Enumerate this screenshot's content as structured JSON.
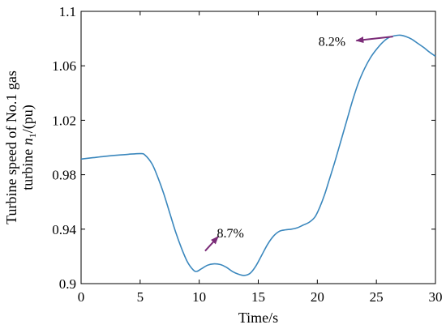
{
  "chart_data": {
    "type": "line",
    "xlabel": "Time/s",
    "ylabel_line1": "Turbine speed of No.1 gas",
    "ylabel_line2_prefix": "turbine ",
    "ylabel_symbol": "n",
    "ylabel_subscript": "1",
    "ylabel_suffix": "/(pu)",
    "xlim": [
      0,
      30
    ],
    "ylim": [
      0.9,
      1.1
    ],
    "xticks": [
      0,
      5,
      10,
      15,
      20,
      25,
      30
    ],
    "yticks": [
      0.9,
      0.94,
      0.98,
      1.02,
      1.06,
      1.1
    ],
    "grid": false,
    "series": [
      {
        "color": "#3a87bd",
        "x": [
          0,
          1,
          2,
          3,
          4,
          5,
          5.4,
          6,
          6.5,
          7,
          7.5,
          8,
          8.5,
          9,
          9.5,
          9.8,
          10.2,
          10.7,
          11.2,
          11.8,
          12.3,
          12.8,
          13.3,
          13.8,
          14.3,
          14.8,
          15.3,
          15.8,
          16.3,
          16.8,
          17.3,
          17.8,
          18.3,
          18.8,
          19.3,
          19.8,
          20.2,
          20.6,
          21,
          21.5,
          22,
          22.5,
          23,
          23.5,
          24,
          24.5,
          25,
          25.5,
          26,
          26.5,
          27,
          27.5,
          28,
          28.5,
          29,
          29.5,
          30
        ],
        "y": [
          0.9915,
          0.9925,
          0.9935,
          0.9943,
          0.995,
          0.9955,
          0.9945,
          0.988,
          0.978,
          0.966,
          0.952,
          0.938,
          0.926,
          0.916,
          0.91,
          0.909,
          0.911,
          0.9135,
          0.9145,
          0.914,
          0.912,
          0.909,
          0.907,
          0.906,
          0.9075,
          0.913,
          0.921,
          0.929,
          0.935,
          0.9385,
          0.9395,
          0.94,
          0.941,
          0.943,
          0.945,
          0.949,
          0.956,
          0.965,
          0.976,
          0.99,
          1.005,
          1.02,
          1.035,
          1.048,
          1.058,
          1.066,
          1.072,
          1.077,
          1.0805,
          1.082,
          1.0825,
          1.0815,
          1.0795,
          1.0765,
          1.0735,
          1.07,
          1.067
        ]
      }
    ],
    "annotations": [
      {
        "text": "8.7%",
        "arrow_from": [
          10.5,
          0.924
        ],
        "arrow_to": [
          11.6,
          0.9345
        ],
        "text_at": [
          11.5,
          0.934
        ]
      },
      {
        "text": "8.2%",
        "arrow_from": [
          26.4,
          1.0815
        ],
        "arrow_to": [
          23.3,
          1.0785
        ],
        "text_at": [
          20.1,
          1.0748
        ]
      }
    ]
  }
}
